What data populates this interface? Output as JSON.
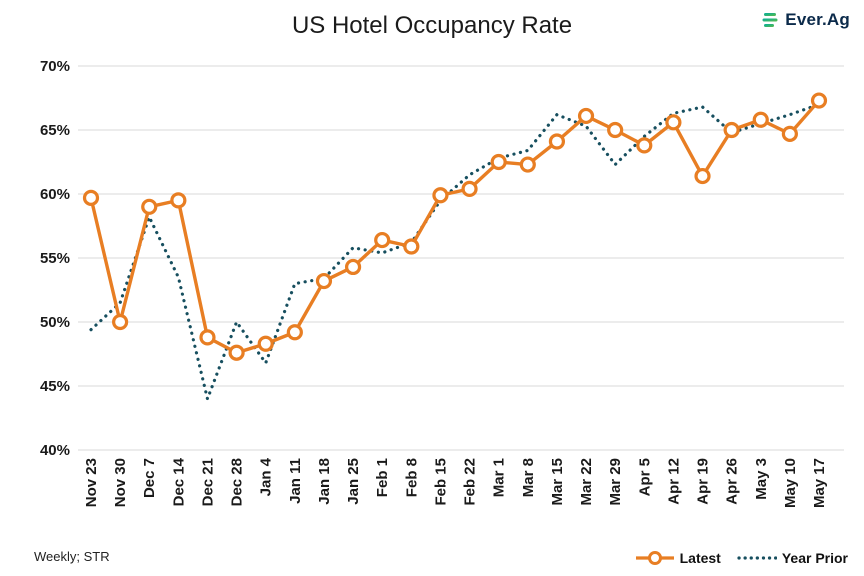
{
  "page": {
    "title": "US Hotel Occupancy Rate",
    "source_note": "Weekly; STR"
  },
  "logo": {
    "text": "Ever.Ag"
  },
  "legend": [
    {
      "label": "Latest"
    },
    {
      "label": "Year Prior"
    }
  ],
  "colors": {
    "latest": "#E87E23",
    "year_prior": "#174F5F",
    "grid": "#D9D9D9",
    "title": "#1B1B1B",
    "logo_navy": "#0B2A4A",
    "logo_teal": "#00AEA0",
    "logo_green": "#5CB947"
  },
  "chart_data": {
    "type": "line",
    "title": "US Hotel Occupancy Rate",
    "xlabel": "",
    "ylabel": "",
    "ylim": [
      40,
      70
    ],
    "yticks": [
      40,
      45,
      50,
      55,
      60,
      65,
      70
    ],
    "ytick_format": "percent",
    "grid": "horizontal",
    "legend_position": "bottom-right",
    "categories": [
      "Nov 23",
      "Nov 30",
      "Dec 7",
      "Dec 14",
      "Dec 21",
      "Dec 28",
      "Jan 4",
      "Jan 11",
      "Jan 18",
      "Jan 25",
      "Feb 1",
      "Feb 8",
      "Feb 15",
      "Feb 22",
      "Mar 1",
      "Mar 8",
      "Mar 15",
      "Mar 22",
      "Mar 29",
      "Apr 5",
      "Apr 12",
      "Apr 19",
      "Apr 26",
      "May 3",
      "May 10",
      "May 17"
    ],
    "series": [
      {
        "name": "Latest",
        "style": "solid-line-open-circle-markers",
        "values": [
          59.7,
          50.0,
          59.0,
          59.5,
          48.8,
          47.6,
          48.3,
          49.2,
          53.2,
          54.3,
          56.4,
          55.9,
          59.9,
          60.4,
          62.5,
          62.3,
          64.1,
          66.1,
          65.0,
          63.8,
          65.6,
          61.4,
          65.0,
          65.8,
          64.7,
          67.3
        ]
      },
      {
        "name": "Year Prior",
        "style": "dotted-line",
        "values": [
          49.4,
          51.5,
          58.2,
          53.5,
          44.0,
          50.0,
          46.8,
          53.0,
          53.4,
          55.8,
          55.4,
          56.2,
          59.5,
          61.5,
          62.8,
          63.4,
          66.2,
          65.3,
          62.3,
          64.5,
          66.3,
          66.8,
          64.8,
          65.5,
          66.2,
          67.0
        ]
      }
    ]
  }
}
